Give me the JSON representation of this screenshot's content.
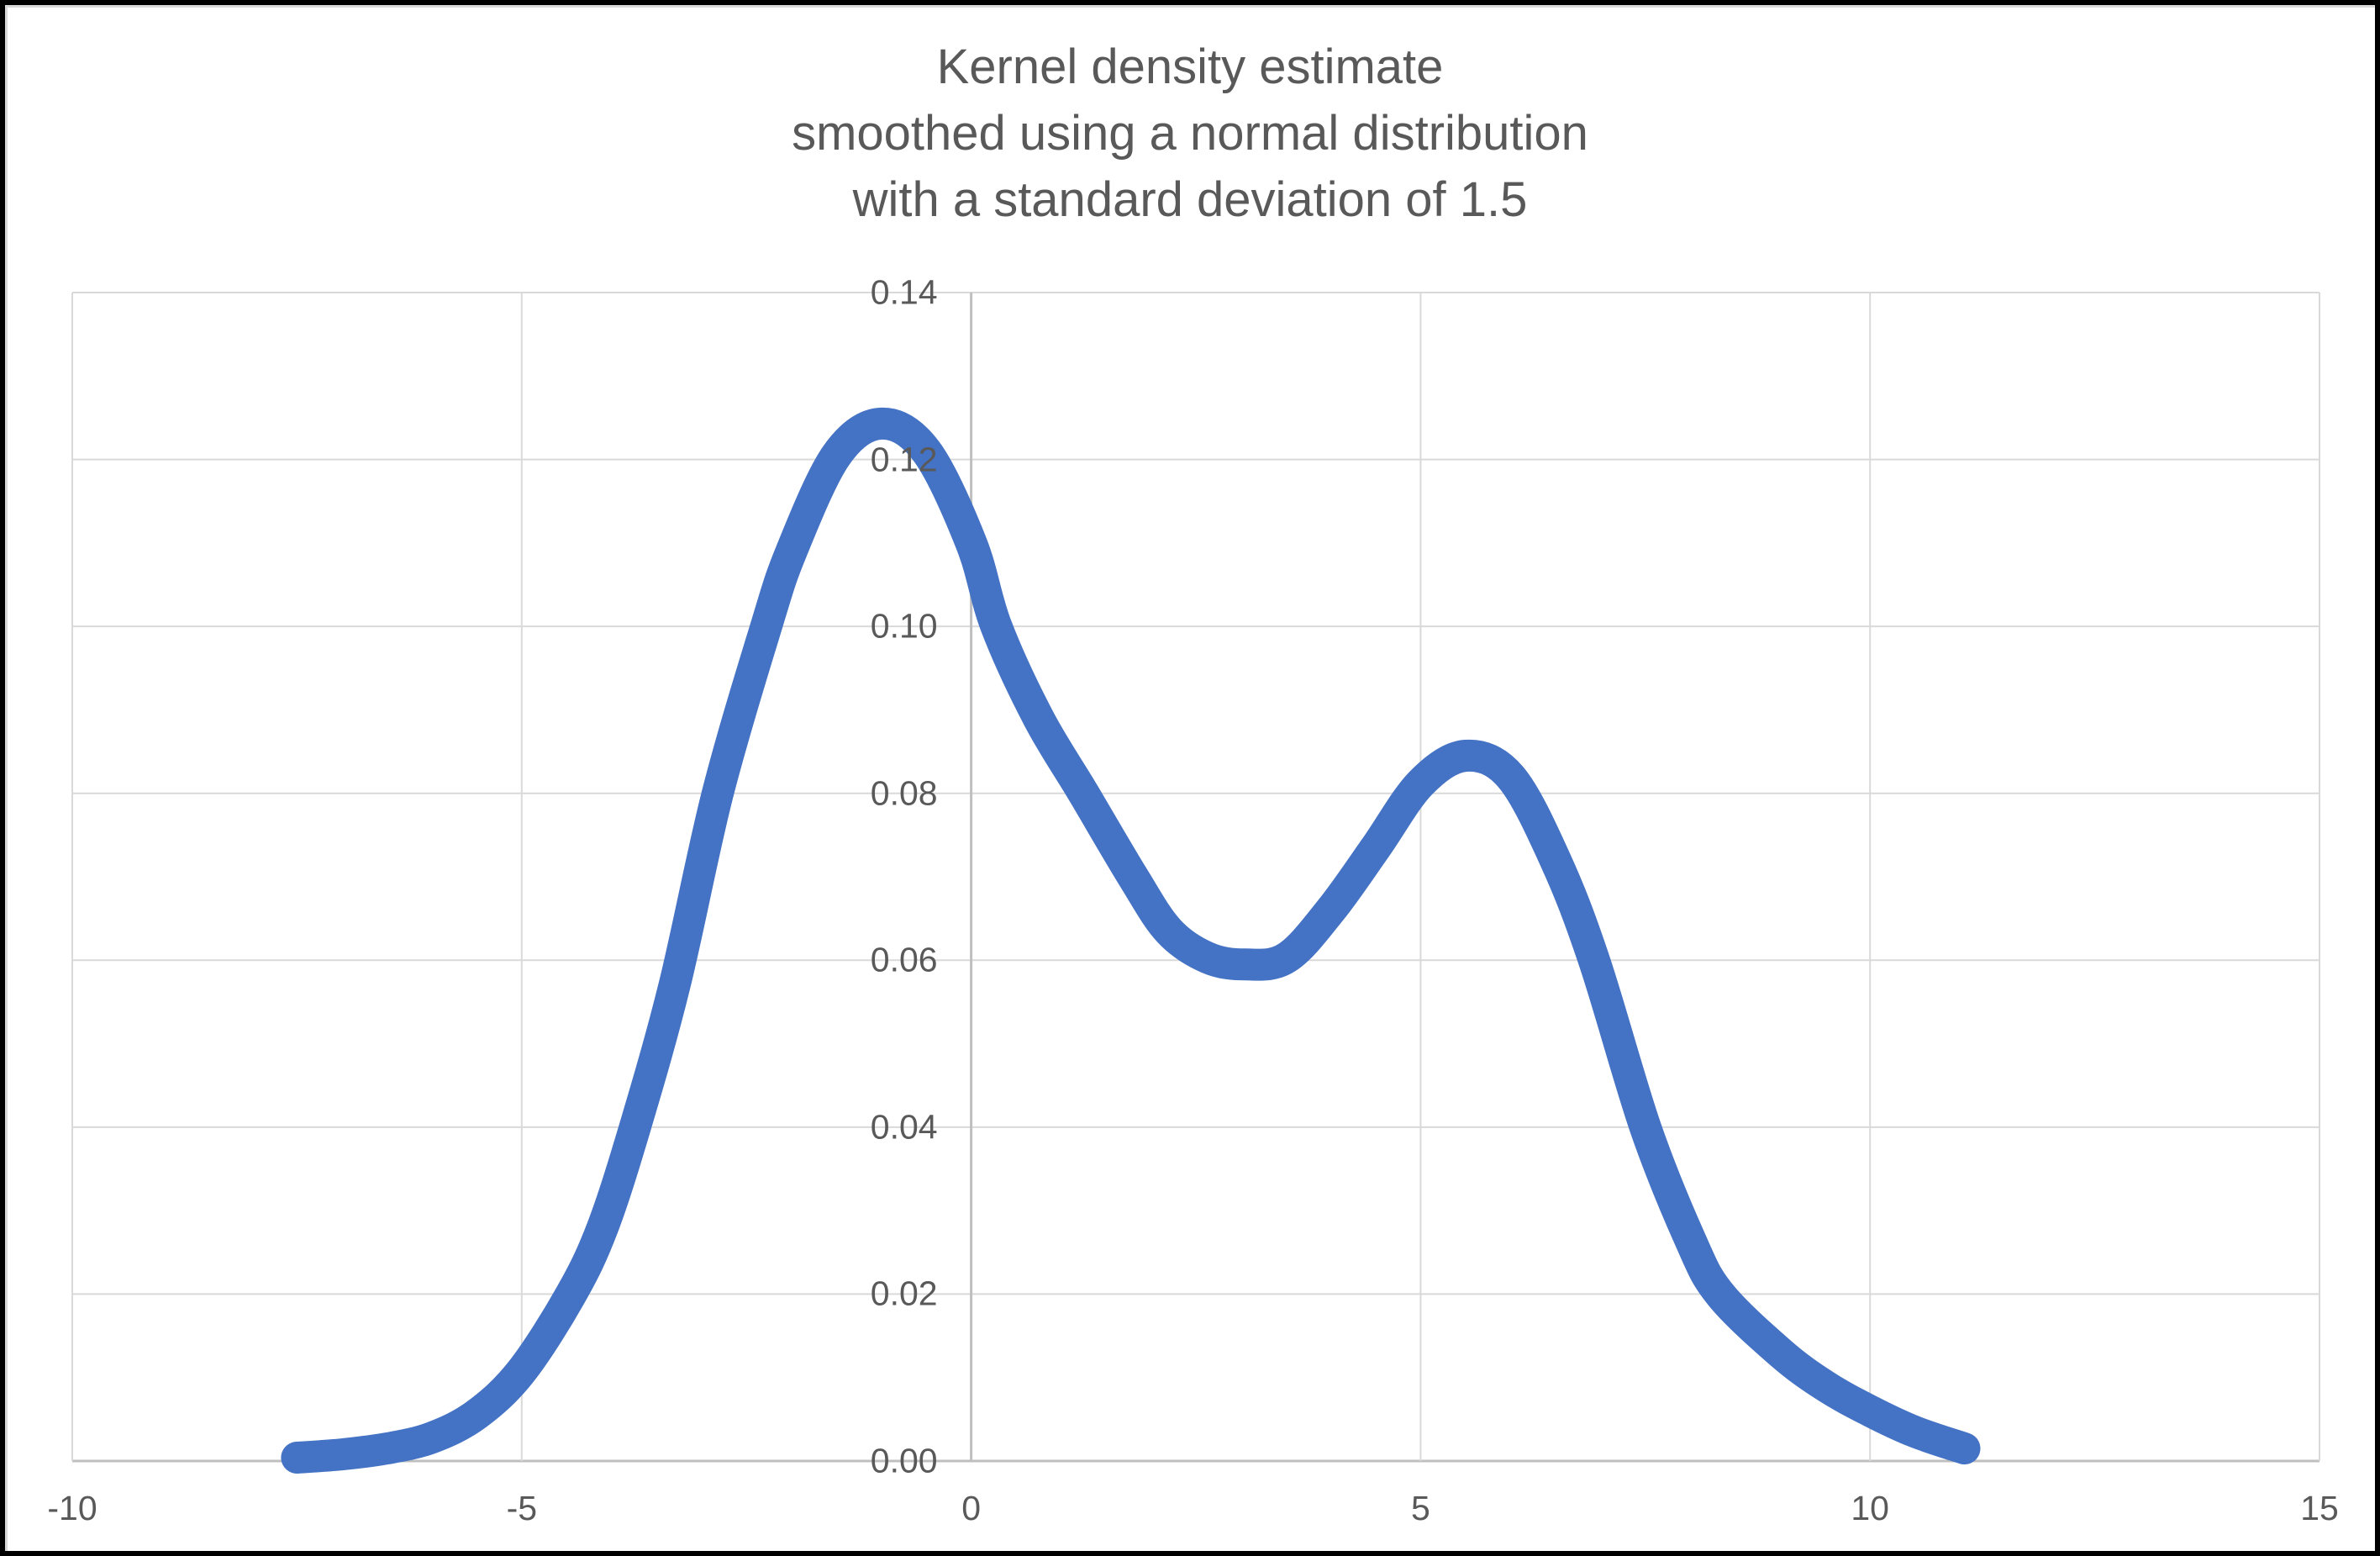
{
  "window": {
    "background": "#ffffff",
    "frame_color": "#000000",
    "bezel_color": "#d9d9d9"
  },
  "chart_data": {
    "type": "line",
    "title_lines": [
      "Kernel density estimate",
      "smoothed using a normal distribution",
      "with a standard deviation of 1.5"
    ],
    "title_color": "#595959",
    "label_color": "#595959",
    "grid_color": "#d9d9d9",
    "axis_color": "#bfbfbf",
    "legend": "none",
    "x_axis": {
      "min": -10,
      "max": 15,
      "ticks": [
        -10,
        -5,
        0,
        5,
        10,
        15
      ]
    },
    "y_axis": {
      "min": 0,
      "max": 0.14,
      "ticks": [
        0.0,
        0.02,
        0.04,
        0.06,
        0.08,
        0.1,
        0.12,
        0.14
      ],
      "decimals": 2
    },
    "series": [
      {
        "name": "kde-curve",
        "color": "#4472C4",
        "stroke_width": 38,
        "points": [
          [
            -7.5,
            0.0004
          ],
          [
            -7.0,
            0.0008
          ],
          [
            -6.5,
            0.0015
          ],
          [
            -6.0,
            0.0028
          ],
          [
            -5.5,
            0.0056
          ],
          [
            -5.0,
            0.0108
          ],
          [
            -4.45,
            0.02
          ],
          [
            -4.1,
            0.028
          ],
          [
            -3.74,
            0.04
          ],
          [
            -3.3,
            0.057
          ],
          [
            -2.82,
            0.08
          ],
          [
            -2.28,
            0.1
          ],
          [
            -2.0,
            0.109
          ],
          [
            -1.5,
            0.1205
          ],
          [
            -1.0,
            0.1243
          ],
          [
            -0.5,
            0.121
          ],
          [
            0.0,
            0.11
          ],
          [
            0.28,
            0.1
          ],
          [
            0.75,
            0.089
          ],
          [
            1.25,
            0.08
          ],
          [
            1.8,
            0.07
          ],
          [
            2.2,
            0.0635
          ],
          [
            2.63,
            0.0603
          ],
          [
            3.05,
            0.0595
          ],
          [
            3.51,
            0.0603
          ],
          [
            4.0,
            0.066
          ],
          [
            4.5,
            0.0735
          ],
          [
            5.0,
            0.0812
          ],
          [
            5.5,
            0.0845
          ],
          [
            6.0,
            0.082
          ],
          [
            6.5,
            0.072
          ],
          [
            6.93,
            0.06
          ],
          [
            7.5,
            0.04
          ],
          [
            8.0,
            0.0265
          ],
          [
            8.33,
            0.02
          ],
          [
            9.0,
            0.013
          ],
          [
            9.5,
            0.009
          ],
          [
            10.0,
            0.006
          ],
          [
            10.5,
            0.0035
          ],
          [
            11.05,
            0.0015
          ]
        ]
      }
    ]
  }
}
